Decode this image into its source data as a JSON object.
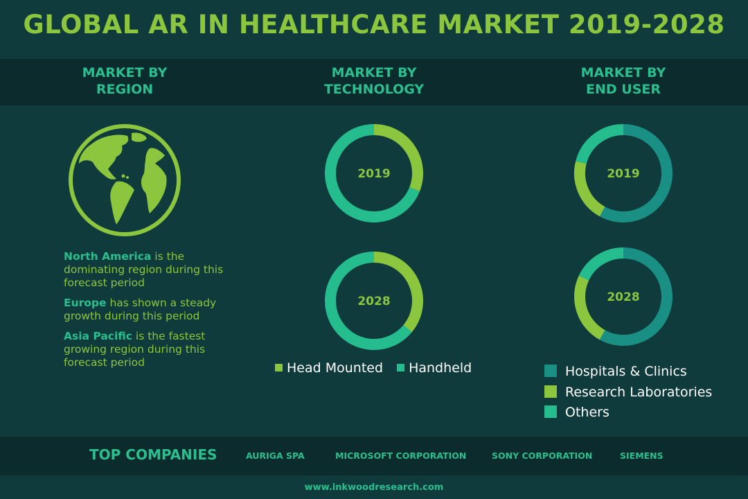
{
  "title": "GLOBAL AR IN HEALTHCARE MARKET 2019-2028",
  "columns": {
    "region": {
      "line1": "MARKET BY",
      "line2": "REGION"
    },
    "technology": {
      "line1": "MARKET BY",
      "line2": "TECHNOLOGY"
    },
    "end_user": {
      "line1": "MARKET BY",
      "line2": "END USER"
    }
  },
  "region_notes": [
    {
      "highlight": "North America",
      "rest": " is the dominating region during this  forecast period"
    },
    {
      "highlight": "Europe",
      "rest": " has shown a steady growth during this period"
    },
    {
      "highlight": "Asia Pacific",
      "rest": " is the fastest growing region during this forecast period"
    }
  ],
  "colors": {
    "teal": "#1a8f84",
    "green": "#8cc63f",
    "mint": "#25bd8d",
    "accent_text": "#2bbf8f",
    "globe": "#8cc63f"
  },
  "chart_data": [
    {
      "type": "pie",
      "title": "MARKET BY TECHNOLOGY",
      "center_label": "2019",
      "categories": [
        "Head Mounted",
        "Handheld"
      ],
      "values": [
        31,
        69
      ]
    },
    {
      "type": "pie",
      "title": "MARKET BY TECHNOLOGY",
      "center_label": "2028",
      "categories": [
        "Head Mounted",
        "Handheld"
      ],
      "values": [
        36,
        64
      ]
    },
    {
      "type": "pie",
      "title": "MARKET BY END USER",
      "center_label": "2019",
      "categories": [
        "Hospitals & Clinics",
        "Research Laboratories",
        "Others"
      ],
      "values": [
        58,
        21,
        21
      ]
    },
    {
      "type": "pie",
      "title": "MARKET BY END USER",
      "center_label": "2028",
      "categories": [
        "Hospitals & Clinics",
        "Research Laboratories",
        "Others"
      ],
      "values": [
        58,
        24,
        18
      ]
    }
  ],
  "legend_technology": [
    {
      "label": "Head Mounted",
      "color": "#8cc63f"
    },
    {
      "label": "Handheld",
      "color": "#25bd8d"
    }
  ],
  "legend_end_user": [
    {
      "label": "Hospitals & Clinics",
      "color": "#1a8f84"
    },
    {
      "label": "Research Laboratories",
      "color": "#8cc63f"
    },
    {
      "label": "Others",
      "color": "#25bd8d"
    }
  ],
  "footer": {
    "top_companies_label": "TOP COMPANIES",
    "companies": [
      "AURIGA SPA",
      "MICROSOFT CORPORATION",
      "SONY CORPORATION",
      "SIEMENS"
    ],
    "url": "www.inkwoodresearch.com"
  }
}
